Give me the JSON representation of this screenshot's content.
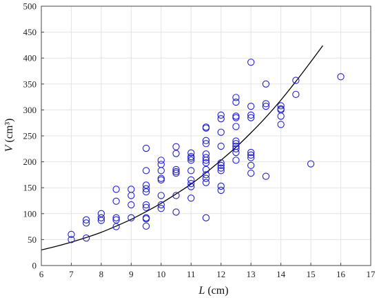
{
  "chart_data": {
    "type": "scatter",
    "title": "",
    "xlabel_var": "L",
    "xlabel_unit": " (cm)",
    "ylabel_var": "V",
    "ylabel_unit": " (cm³)",
    "xlim": [
      6,
      17
    ],
    "ylim": [
      0,
      500
    ],
    "x_ticks": [
      6,
      7,
      8,
      9,
      10,
      11,
      12,
      13,
      14,
      15,
      16,
      17
    ],
    "y_ticks": [
      0,
      50,
      100,
      150,
      200,
      250,
      300,
      350,
      400,
      450,
      500
    ],
    "grid": true,
    "legend": "none",
    "colors": {
      "points": "#1f1fcc",
      "curve": "#000000",
      "grid": "#e3e3e3",
      "axes": "#444444"
    },
    "series": [
      {
        "type": "scatter",
        "points": [
          [
            7,
            60
          ],
          [
            7,
            50
          ],
          [
            7.5,
            88
          ],
          [
            7.5,
            82
          ],
          [
            7.5,
            53
          ],
          [
            8,
            100
          ],
          [
            8,
            92
          ],
          [
            8,
            87
          ],
          [
            8.5,
            147
          ],
          [
            8.5,
            124
          ],
          [
            8.5,
            92
          ],
          [
            8.5,
            88
          ],
          [
            8.5,
            75
          ],
          [
            9,
            147
          ],
          [
            9,
            135
          ],
          [
            9,
            117
          ],
          [
            9,
            92
          ],
          [
            9.5,
            226
          ],
          [
            9.5,
            183
          ],
          [
            9.5,
            155
          ],
          [
            9.5,
            148
          ],
          [
            9.5,
            142
          ],
          [
            9.5,
            117
          ],
          [
            9.5,
            112
          ],
          [
            9.5,
            92
          ],
          [
            9.5,
            90
          ],
          [
            9.5,
            76
          ],
          [
            10,
            203
          ],
          [
            10,
            195
          ],
          [
            10,
            183
          ],
          [
            10,
            168
          ],
          [
            10,
            165
          ],
          [
            10,
            135
          ],
          [
            10,
            117
          ],
          [
            10,
            110
          ],
          [
            10.5,
            229
          ],
          [
            10.5,
            216
          ],
          [
            10.5,
            185
          ],
          [
            10.5,
            181
          ],
          [
            10.5,
            178
          ],
          [
            10.5,
            135
          ],
          [
            10.5,
            103
          ],
          [
            11,
            217
          ],
          [
            11,
            210
          ],
          [
            11,
            207
          ],
          [
            11,
            203
          ],
          [
            11,
            183
          ],
          [
            11,
            165
          ],
          [
            11,
            158
          ],
          [
            11,
            152
          ],
          [
            11,
            130
          ],
          [
            11.5,
            267
          ],
          [
            11.5,
            265
          ],
          [
            11.5,
            241
          ],
          [
            11.5,
            235
          ],
          [
            11.5,
            215
          ],
          [
            11.5,
            208
          ],
          [
            11.5,
            203
          ],
          [
            11.5,
            198
          ],
          [
            11.5,
            185
          ],
          [
            11.5,
            175
          ],
          [
            11.5,
            168
          ],
          [
            11.5,
            160
          ],
          [
            11.5,
            92
          ],
          [
            12,
            290
          ],
          [
            12,
            283
          ],
          [
            12,
            257
          ],
          [
            12,
            230
          ],
          [
            12,
            198
          ],
          [
            12,
            193
          ],
          [
            12,
            188
          ],
          [
            12,
            183
          ],
          [
            12,
            153
          ],
          [
            12,
            145
          ],
          [
            12.5,
            324
          ],
          [
            12.5,
            315
          ],
          [
            12.5,
            288
          ],
          [
            12.5,
            285
          ],
          [
            12.5,
            268
          ],
          [
            12.5,
            240
          ],
          [
            12.5,
            235
          ],
          [
            12.5,
            230
          ],
          [
            12.5,
            225
          ],
          [
            12.5,
            218
          ],
          [
            12.5,
            203
          ],
          [
            13,
            392
          ],
          [
            13,
            307
          ],
          [
            13,
            290
          ],
          [
            13,
            285
          ],
          [
            13,
            218
          ],
          [
            13,
            213
          ],
          [
            13,
            208
          ],
          [
            13,
            193
          ],
          [
            13,
            178
          ],
          [
            13.5,
            350
          ],
          [
            13.5,
            312
          ],
          [
            13.5,
            307
          ],
          [
            13.5,
            172
          ],
          [
            14,
            308
          ],
          [
            14,
            302
          ],
          [
            14,
            300
          ],
          [
            14,
            288
          ],
          [
            14,
            272
          ],
          [
            14.5,
            357
          ],
          [
            14.5,
            330
          ],
          [
            15,
            196
          ],
          [
            16,
            364
          ]
        ]
      },
      {
        "type": "line",
        "x": [
          6,
          6.5,
          7,
          7.5,
          8,
          8.5,
          9,
          9.5,
          10,
          10.5,
          11,
          11.5,
          12,
          12.5,
          13,
          13.5,
          14,
          14.5,
          15,
          15.4
        ],
        "y": [
          30,
          37,
          45,
          54,
          64,
          76,
          89,
          104,
          120,
          138,
          157,
          179,
          203,
          228,
          256,
          286,
          319,
          355,
          393,
          424
        ]
      }
    ]
  }
}
